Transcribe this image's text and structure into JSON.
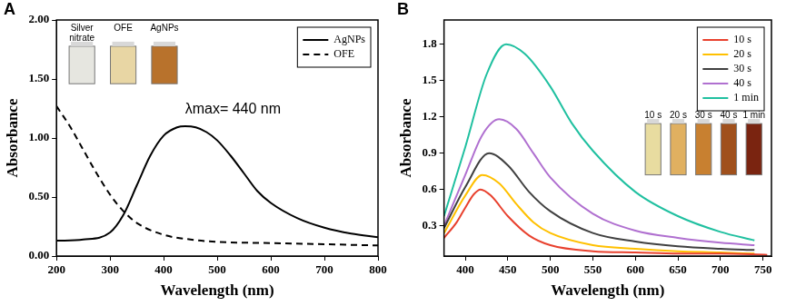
{
  "chart_data": [
    {
      "type": "line",
      "panel_label": "A",
      "x_label": "Wavelength (nm)",
      "y_label": "Absorbance",
      "xlim": [
        200,
        800
      ],
      "xticks": [
        200,
        300,
        400,
        500,
        600,
        700,
        800
      ],
      "ylim": [
        0,
        2
      ],
      "yticks": [
        {
          "value": 0,
          "label": "0.00"
        },
        {
          "value": 0.5,
          "label": "0.50"
        },
        {
          "value": 1,
          "label": "1.00"
        },
        {
          "value": 1.5,
          "label": "1.50"
        },
        {
          "value": 2,
          "label": "2.00"
        }
      ],
      "grid": false,
      "legend": "upper right",
      "annotation": "λmax= 440 nm",
      "inset": {
        "labels": [
          "Silver nitrate",
          "OFE",
          "AgNPs"
        ],
        "colors": [
          "#e6e6e0",
          "#e8d6a4",
          "#b8722c"
        ]
      },
      "series": [
        {
          "name": "AgNPs",
          "color": "#000000",
          "line_style": "solid",
          "x": [
            200,
            250,
            300,
            325,
            350,
            375,
            400,
            425,
            440,
            460,
            480,
            500,
            525,
            550,
            575,
            600,
            650,
            700,
            750,
            800
          ],
          "values": [
            0.13,
            0.14,
            0.2,
            0.35,
            0.6,
            0.85,
            1.02,
            1.09,
            1.1,
            1.09,
            1.05,
            0.98,
            0.85,
            0.7,
            0.55,
            0.45,
            0.32,
            0.24,
            0.19,
            0.16
          ]
        },
        {
          "name": "OFE",
          "color": "#000000",
          "line_style": "dashed",
          "x": [
            200,
            225,
            250,
            275,
            300,
            325,
            350,
            400,
            450,
            500,
            600,
            700,
            800
          ],
          "values": [
            1.27,
            1.1,
            0.9,
            0.7,
            0.52,
            0.38,
            0.28,
            0.18,
            0.14,
            0.12,
            0.11,
            0.1,
            0.09
          ]
        }
      ]
    },
    {
      "type": "line",
      "panel_label": "B",
      "x_label": "Wavelength (nm)",
      "y_label": "Absorbance",
      "xlim": [
        375,
        760
      ],
      "xticks": [
        400,
        450,
        500,
        550,
        600,
        650,
        700,
        750
      ],
      "ylim": [
        0.05,
        2.0
      ],
      "yticks": [
        0.3,
        0.6,
        0.9,
        1.2,
        1.5,
        1.8
      ],
      "grid": false,
      "legend": "upper right",
      "inset": {
        "labels": [
          "10 s",
          "20 s",
          "30 s",
          "40 s",
          "1 min"
        ],
        "colors": [
          "#e8dca0",
          "#e0b060",
          "#c88030",
          "#a0501c",
          "#7a2410"
        ]
      },
      "series": [
        {
          "name": "10 s",
          "color": "#e8412e",
          "line_style": "solid",
          "x": [
            375,
            390,
            400,
            410,
            418,
            430,
            450,
            475,
            500,
            550,
            600,
            650,
            700,
            755
          ],
          "values": [
            0.2,
            0.33,
            0.45,
            0.56,
            0.6,
            0.55,
            0.38,
            0.22,
            0.14,
            0.09,
            0.08,
            0.07,
            0.07,
            0.06
          ]
        },
        {
          "name": "20 s",
          "color": "#ffc000",
          "line_style": "solid",
          "x": [
            375,
            400,
            420,
            440,
            460,
            480,
            500,
            550,
            600,
            650,
            700,
            740
          ],
          "values": [
            0.24,
            0.55,
            0.72,
            0.65,
            0.48,
            0.33,
            0.24,
            0.14,
            0.11,
            0.09,
            0.08,
            0.07
          ]
        },
        {
          "name": "30 s",
          "color": "#404040",
          "line_style": "solid",
          "x": [
            375,
            400,
            428,
            450,
            475,
            500,
            550,
            600,
            650,
            700,
            740
          ],
          "values": [
            0.28,
            0.62,
            0.9,
            0.8,
            0.58,
            0.42,
            0.24,
            0.17,
            0.13,
            0.11,
            0.1
          ]
        },
        {
          "name": "40 s",
          "color": "#b070d0",
          "line_style": "solid",
          "x": [
            375,
            400,
            420,
            440,
            460,
            480,
            500,
            550,
            600,
            650,
            700,
            740
          ],
          "values": [
            0.3,
            0.72,
            1.05,
            1.18,
            1.1,
            0.9,
            0.7,
            0.4,
            0.26,
            0.2,
            0.16,
            0.14
          ]
        },
        {
          "name": "1 min",
          "color": "#20c0a0",
          "line_style": "solid",
          "x": [
            375,
            400,
            425,
            448,
            470,
            500,
            525,
            550,
            600,
            650,
            700,
            740
          ],
          "values": [
            0.38,
            0.95,
            1.55,
            1.8,
            1.72,
            1.45,
            1.15,
            0.92,
            0.58,
            0.38,
            0.25,
            0.18
          ]
        }
      ]
    }
  ]
}
